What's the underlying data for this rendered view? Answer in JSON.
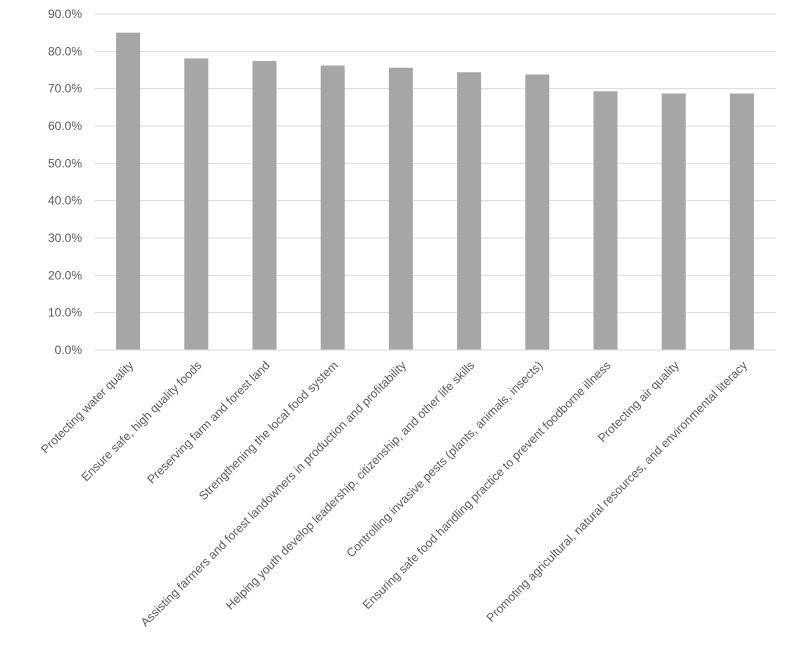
{
  "chart_data": {
    "type": "bar",
    "title": "",
    "xlabel": "",
    "ylabel": "",
    "ylim": [
      0,
      90
    ],
    "yticks": [
      "0.0%",
      "10.0%",
      "20.0%",
      "30.0%",
      "40.0%",
      "50.0%",
      "60.0%",
      "70.0%",
      "80.0%",
      "90.0%"
    ],
    "grid": true,
    "legend": "none",
    "bar_color": "#a6a6a6",
    "grid_color": "#d9d9d9",
    "categories": [
      "Protecting water quality",
      "Ensure safe, high quality foods",
      "Preserving farm and forest land",
      "Strengthening the local food system",
      "Assisting farmers and forest landowners in production and profitability",
      "Helping youth develop leadership, citizenship, and other life skills",
      "Controlling invasive pests (plants, animals, insects)",
      "Ensuring safe food handling practice to prevent foodborne illness",
      "Protecting air quality",
      "Promoting agricultural, natural resources, and environmental literacy"
    ],
    "values": [
      85.0,
      78.1,
      77.4,
      76.2,
      75.6,
      74.4,
      73.8,
      69.3,
      68.7,
      68.7
    ]
  }
}
